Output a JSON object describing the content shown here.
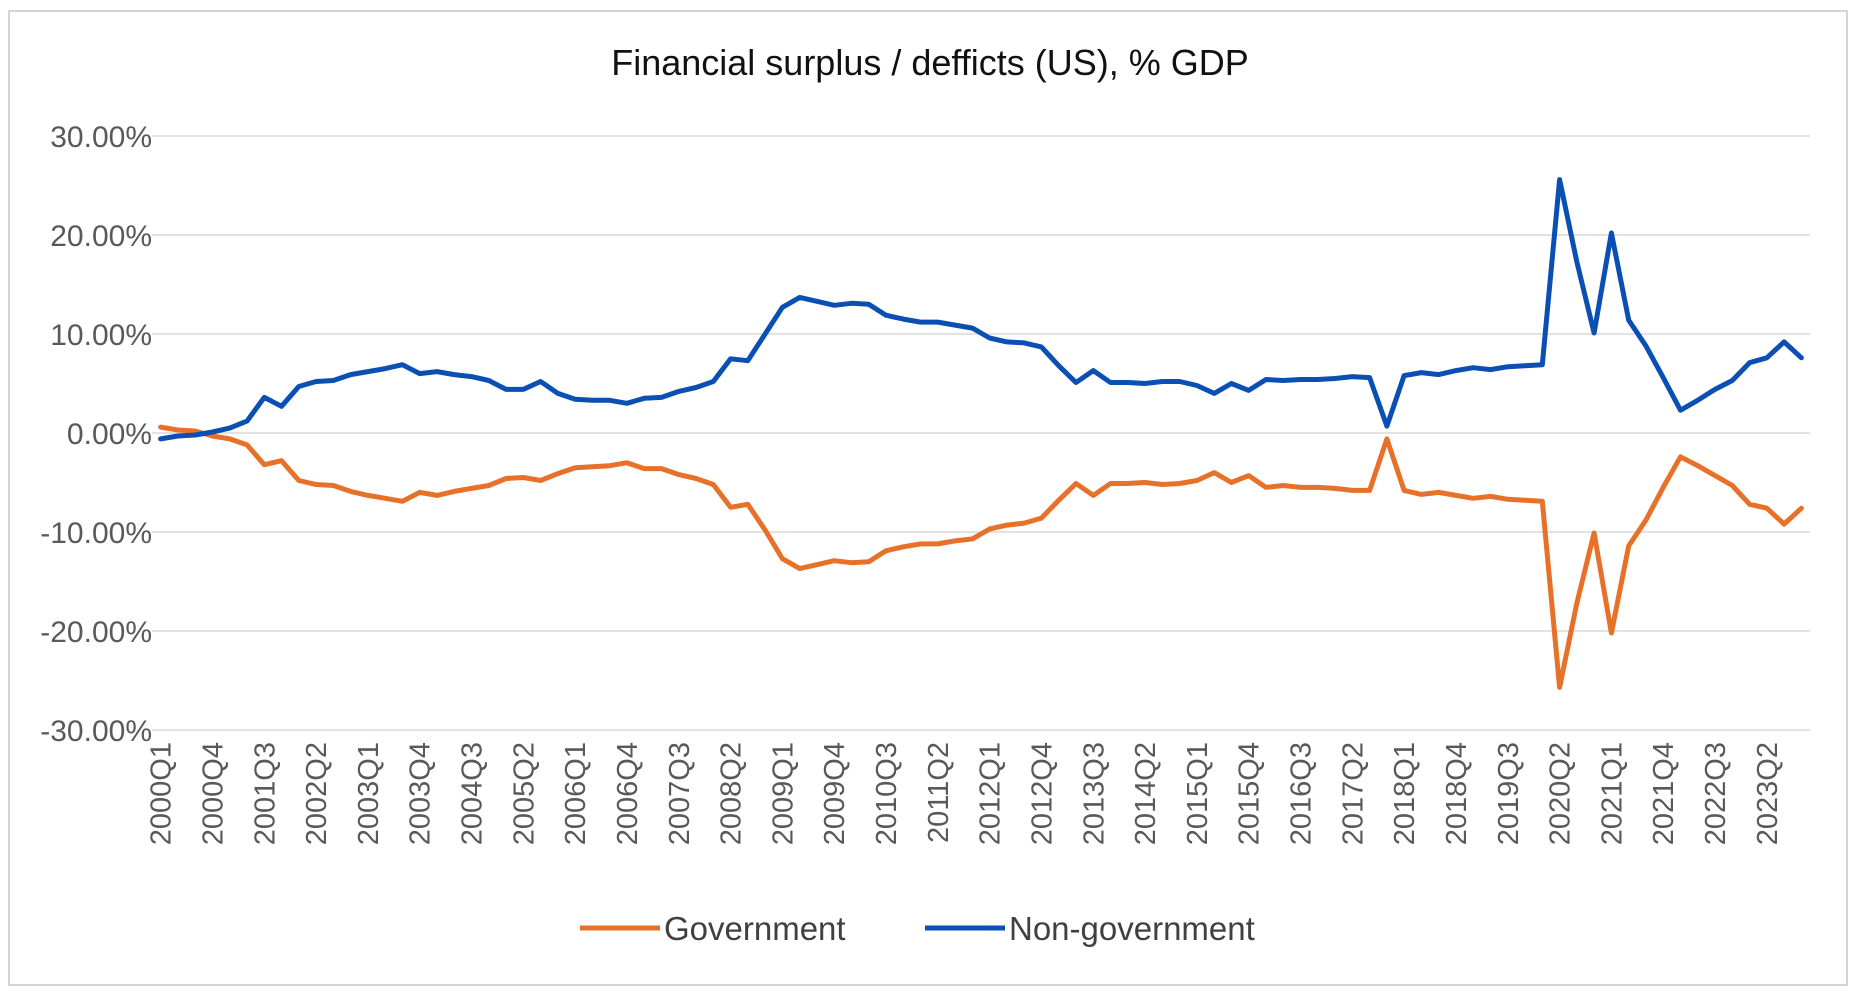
{
  "chart_data": {
    "type": "line",
    "title": "Financial surplus / defficts (US), % GDP",
    "xlabel": "",
    "ylabel": "",
    "ylim": [
      -30,
      30
    ],
    "y_ticks": [
      30,
      20,
      10,
      0,
      -10,
      -20,
      -30
    ],
    "y_tick_labels": [
      "30.00%",
      "20.00%",
      "10.00%",
      "0.00%",
      "-10.00%",
      "-20.00%",
      "-30.00%"
    ],
    "x_tick_labels": [
      "2000Q1",
      "2000Q4",
      "2001Q3",
      "2002Q2",
      "2003Q1",
      "2003Q4",
      "2004Q3",
      "2005Q2",
      "2006Q1",
      "2006Q4",
      "2007Q3",
      "2008Q2",
      "2009Q1",
      "2009Q4",
      "2010Q3",
      "2011Q2",
      "2012Q1",
      "2012Q4",
      "2013Q3",
      "2014Q2",
      "2015Q1",
      "2015Q4",
      "2016Q3",
      "2017Q2",
      "2018Q1",
      "2018Q4",
      "2019Q3",
      "2020Q2",
      "2021Q1",
      "2021Q4",
      "2022Q3",
      "2023Q2"
    ],
    "legend_position": "bottom",
    "series": [
      {
        "name": "Government",
        "color": "#E8712A",
        "values": [
          0.6,
          0.3,
          0.2,
          -0.3,
          -0.6,
          -1.2,
          -3.2,
          -2.8,
          -4.8,
          -5.2,
          -5.3,
          -5.9,
          -6.3,
          -6.6,
          -6.9,
          -6.0,
          -6.3,
          -5.9,
          -5.6,
          -5.3,
          -4.6,
          -4.5,
          -4.8,
          -4.1,
          -3.5,
          -3.4,
          -3.3,
          -3.0,
          -3.6,
          -3.6,
          -4.2,
          -4.6,
          -5.2,
          -7.5,
          -7.2,
          -9.8,
          -12.7,
          -13.7,
          -13.3,
          -12.9,
          -13.1,
          -13.0,
          -11.9,
          -11.5,
          -11.2,
          -11.2,
          -10.9,
          -10.7,
          -9.7,
          -9.3,
          -9.1,
          -8.6,
          -6.8,
          -5.1,
          -6.3,
          -5.1,
          -5.1,
          -5.0,
          -5.2,
          -5.1,
          -4.8,
          -4.0,
          -5.0,
          -4.3,
          -5.5,
          -5.3,
          -5.5,
          -5.5,
          -5.6,
          -5.8,
          -5.8,
          -0.6,
          -5.8,
          -6.2,
          -6.0,
          -6.3,
          -6.6,
          -6.4,
          -6.7,
          -6.8,
          -6.9,
          -25.7,
          -17.2,
          -10.1,
          -20.2,
          -11.4,
          -8.8,
          -5.5,
          -2.4,
          -3.3,
          -4.3,
          -5.3,
          -7.2,
          -7.6,
          -9.2,
          -7.6
        ]
      },
      {
        "name": "Non-government",
        "color": "#0A4FB3",
        "values": [
          -0.6,
          -0.3,
          -0.2,
          0.1,
          0.5,
          1.2,
          3.6,
          2.7,
          4.7,
          5.2,
          5.3,
          5.9,
          6.2,
          6.5,
          6.9,
          6.0,
          6.2,
          5.9,
          5.7,
          5.3,
          4.4,
          4.4,
          5.2,
          4.0,
          3.4,
          3.3,
          3.3,
          3.0,
          3.5,
          3.6,
          4.2,
          4.6,
          5.2,
          7.5,
          7.3,
          10.0,
          12.7,
          13.7,
          13.3,
          12.9,
          13.1,
          13.0,
          11.9,
          11.5,
          11.2,
          11.2,
          10.9,
          10.6,
          9.6,
          9.2,
          9.1,
          8.7,
          6.8,
          5.1,
          6.3,
          5.1,
          5.1,
          5.0,
          5.2,
          5.2,
          4.8,
          4.0,
          5.0,
          4.3,
          5.4,
          5.3,
          5.4,
          5.4,
          5.5,
          5.7,
          5.6,
          0.7,
          5.8,
          6.1,
          5.9,
          6.3,
          6.6,
          6.4,
          6.7,
          6.8,
          6.9,
          25.6,
          17.3,
          10.1,
          20.2,
          11.4,
          8.8,
          5.6,
          2.3,
          3.3,
          4.4,
          5.3,
          7.1,
          7.6,
          9.2,
          7.6
        ]
      }
    ]
  }
}
